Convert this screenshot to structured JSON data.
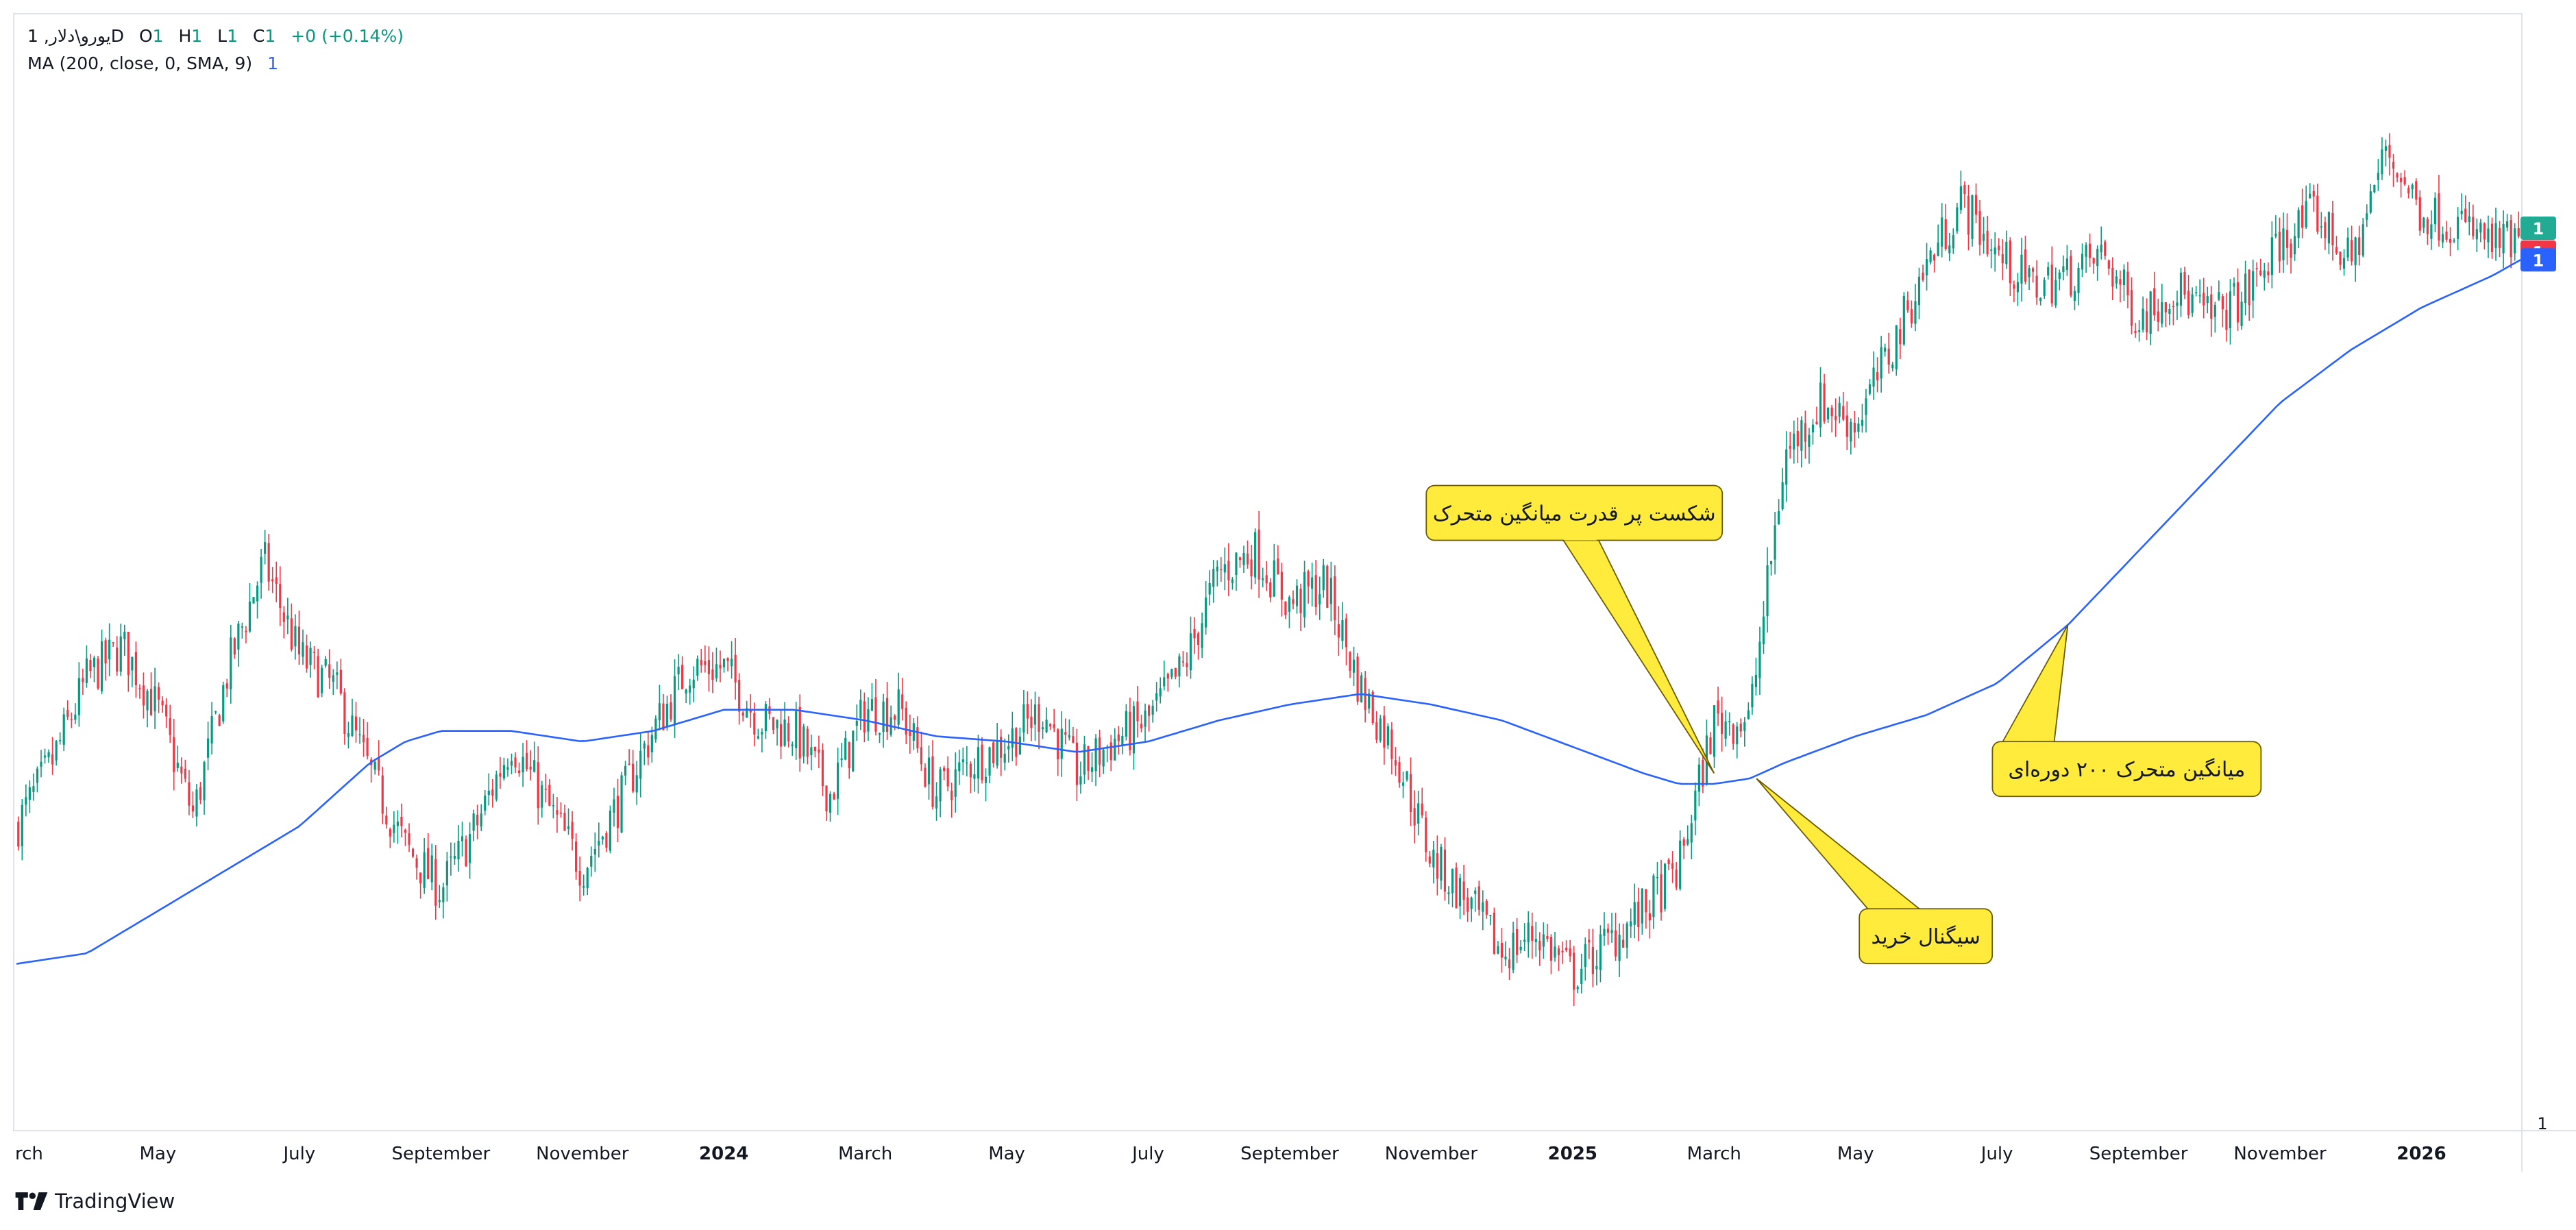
{
  "legend": {
    "symbol": "1 ,یورو\\دلار",
    "interval": "D",
    "open_label": "O",
    "open_value": "1",
    "high_label": "H",
    "high_value": "1",
    "low_label": "L",
    "low_value": "1",
    "close_label": "C",
    "close_value": "1",
    "change": "+0 (+0.14%)",
    "ma_label": "MA (200, close, 0, SMA, 9)",
    "ma_value": "1"
  },
  "brand": {
    "name": "TradingView"
  },
  "colors": {
    "up": "#089981",
    "down": "#f23645",
    "ma": "#2962ff",
    "callout_fill": "#ffeb3b",
    "callout_border": "#6b5b00",
    "price_badge_last": "#22ab94",
    "price_badge_red": "#f23645"
  },
  "chart_data": {
    "type": "candlestick",
    "title": "",
    "xlabel": "",
    "ylabel": "",
    "x_ticks": [
      "rch",
      "May",
      "July",
      "September",
      "November",
      "2024",
      "March",
      "May",
      "July",
      "September",
      "November",
      "2025",
      "March",
      "May",
      "July",
      "September",
      "November",
      "2026"
    ],
    "x_tick_positions": [
      0.0,
      2.0,
      4.0,
      6.0,
      8.0,
      10.0,
      12.0,
      14.0,
      16.0,
      18.0,
      20.0,
      22.0,
      24.0,
      26.0,
      28.0,
      30.0,
      32.0,
      34.0
    ],
    "y_axis_label": "1",
    "price_badges": [
      "1",
      "1",
      "1"
    ],
    "series": [
      {
        "name": "یورو\\دلار",
        "kind": "close",
        "x": [
          0.0,
          0.5,
          1.0,
          1.5,
          2.0,
          2.5,
          3.0,
          3.5,
          4.0,
          4.5,
          5.0,
          5.5,
          6.0,
          6.5,
          7.0,
          7.5,
          8.0,
          8.5,
          9.0,
          9.5,
          10.0,
          10.5,
          11.0,
          11.5,
          12.0,
          12.5,
          13.0,
          13.5,
          14.0,
          14.5,
          15.0,
          15.5,
          16.0,
          16.5,
          17.0,
          17.5,
          18.0,
          18.5,
          19.0,
          19.5,
          20.0,
          20.5,
          21.0,
          21.5,
          22.0,
          22.5,
          23.0,
          23.5,
          24.0,
          24.5,
          25.0,
          25.5,
          26.0,
          26.5,
          27.0,
          27.5,
          28.0,
          28.5,
          29.0,
          29.5,
          30.0,
          30.5,
          31.0,
          31.5,
          32.0,
          32.5,
          33.0,
          33.5,
          34.0,
          34.5,
          35.0,
          35.4
        ],
        "y": [
          1.06,
          1.072,
          1.088,
          1.094,
          1.082,
          1.062,
          1.09,
          1.11,
          1.092,
          1.086,
          1.07,
          1.056,
          1.048,
          1.06,
          1.076,
          1.064,
          1.052,
          1.064,
          1.078,
          1.09,
          1.09,
          1.08,
          1.078,
          1.066,
          1.082,
          1.082,
          1.066,
          1.072,
          1.076,
          1.082,
          1.07,
          1.076,
          1.08,
          1.09,
          1.108,
          1.112,
          1.102,
          1.106,
          1.086,
          1.074,
          1.054,
          1.046,
          1.036,
          1.04,
          1.032,
          1.038,
          1.044,
          1.052,
          1.08,
          1.08,
          1.13,
          1.14,
          1.136,
          1.15,
          1.166,
          1.178,
          1.168,
          1.162,
          1.164,
          1.168,
          1.156,
          1.162,
          1.156,
          1.16,
          1.17,
          1.176,
          1.166,
          1.188,
          1.176,
          1.174,
          1.17,
          1.17
        ]
      },
      {
        "name": "MA (200, close, 0, SMA, 9)",
        "kind": "line",
        "x": [
          0.0,
          1.0,
          2.0,
          3.0,
          4.0,
          5.0,
          5.5,
          6.0,
          7.0,
          8.0,
          9.0,
          10.0,
          11.0,
          12.0,
          13.0,
          14.0,
          15.0,
          16.0,
          17.0,
          18.0,
          19.0,
          20.0,
          21.0,
          22.0,
          23.0,
          23.5,
          24.0,
          24.5,
          25.0,
          26.0,
          27.0,
          28.0,
          29.0,
          30.0,
          31.0,
          32.0,
          33.0,
          34.0,
          35.0,
          35.4
        ],
        "y": [
          1.034,
          1.036,
          1.044,
          1.052,
          1.06,
          1.072,
          1.076,
          1.078,
          1.078,
          1.076,
          1.078,
          1.082,
          1.082,
          1.08,
          1.077,
          1.076,
          1.074,
          1.076,
          1.08,
          1.083,
          1.085,
          1.083,
          1.08,
          1.075,
          1.07,
          1.068,
          1.068,
          1.069,
          1.072,
          1.077,
          1.081,
          1.087,
          1.098,
          1.112,
          1.126,
          1.14,
          1.15,
          1.158,
          1.164,
          1.167
        ]
      }
    ],
    "annotations": [
      {
        "text": "شکست پر قدرت میانگین متحرک",
        "x": 24.0,
        "y": 1.07
      },
      {
        "text": "سیگنال خرید",
        "x": 24.6,
        "y": 1.069
      },
      {
        "text": "میانگین متحرک ۲۰۰ دوره‌ای",
        "x": 29.0,
        "y": 1.098
      }
    ],
    "xlim": [
      0.0,
      35.4
    ],
    "ylim": [
      1.003,
      1.213
    ],
    "grid": false,
    "legend": "top-left"
  }
}
